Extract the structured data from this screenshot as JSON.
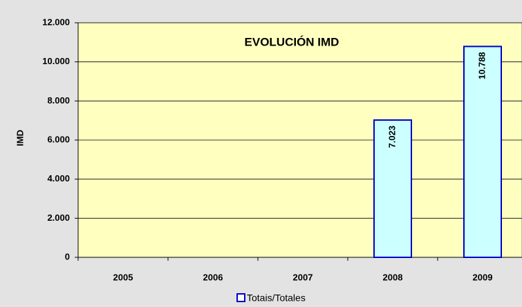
{
  "chart_data": {
    "type": "bar",
    "title": "EVOLUCIÓN IMD",
    "y_label": "IMD",
    "categories": [
      "2005",
      "2006",
      "2007",
      "2008",
      "2009"
    ],
    "series": [
      {
        "name": "Totais/Totales",
        "color": "#ccffff",
        "edge_color": "#0000cc",
        "values": [
          null,
          null,
          null,
          7023,
          10788
        ],
        "value_labels": [
          null,
          null,
          null,
          "7.023",
          "10.788"
        ]
      }
    ],
    "ylim": [
      0,
      12000
    ],
    "yticks": [
      0,
      {
        "value": 2000,
        "label": "2.000"
      },
      {
        "value": 4000,
        "label": "4.000"
      },
      {
        "value": 6000,
        "label": "6.000"
      },
      {
        "value": 8000,
        "label": "8.000"
      },
      {
        "value": 10000,
        "label": "10.000"
      },
      {
        "value": 12000,
        "label": "12.000"
      }
    ],
    "grid": true,
    "legend": "bottom"
  }
}
